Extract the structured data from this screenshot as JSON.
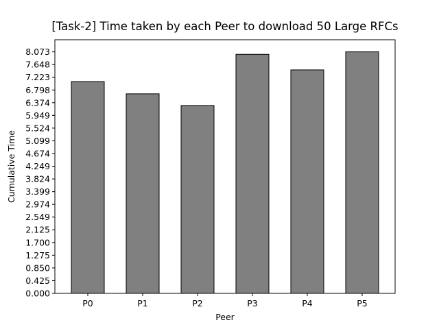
{
  "chart_data": {
    "type": "bar",
    "title": "[Task-2] Time taken by each Peer to download 50 Large RFCs",
    "xlabel": "Peer",
    "ylabel": "Cumulative Time",
    "categories": [
      "P0",
      "P1",
      "P2",
      "P3",
      "P4",
      "P5"
    ],
    "values": [
      7.08,
      6.67,
      6.28,
      7.99,
      7.47,
      8.073
    ],
    "yticks": [
      "0.000",
      "0.425",
      "0.850",
      "1.275",
      "1.700",
      "2.125",
      "2.549",
      "2.974",
      "3.399",
      "3.824",
      "4.249",
      "4.674",
      "5.099",
      "5.524",
      "5.949",
      "6.374",
      "6.798",
      "7.223",
      "7.648",
      "8.073"
    ],
    "ylim": [
      0,
      8.477
    ],
    "grid": false,
    "bar_color": "#808080",
    "edge_color": "#000000"
  }
}
